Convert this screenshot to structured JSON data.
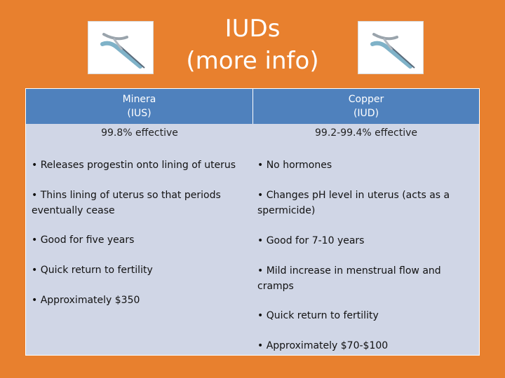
{
  "title": {
    "line1": "IUDs",
    "line2": "(more info)"
  },
  "images": {
    "left": "iud-device-image",
    "right": "iud-device-image"
  },
  "table": {
    "left": {
      "header_line1": "Minera",
      "header_line2": "(IUS)",
      "effectiveness": "99.8% effective",
      "items": [
        "• Releases progestin onto lining of uterus",
        "• Thins lining of uterus so that periods eventually cease",
        "• Good for five years",
        "• Quick return to fertility",
        "• Approximately $350"
      ]
    },
    "right": {
      "header_line1": "Copper",
      "header_line2": "(IUD)",
      "effectiveness": "99.2-99.4% effective",
      "items": [
        "• No hormones",
        "• Changes pH level in uterus (acts as a spermicide)",
        "• Good for 7-10 years",
        "• Mild increase in menstrual flow and cramps",
        "• Quick return to fertility",
        "• Approximately $70-$100"
      ]
    }
  },
  "colors": {
    "background": "#e8802e",
    "header": "#4f81bd",
    "body": "#d0d6e6"
  }
}
